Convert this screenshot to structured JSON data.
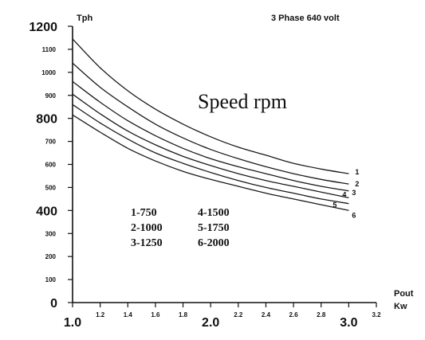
{
  "chart_data": {
    "type": "line",
    "title": "Speed rpm",
    "subtitle": "3 Phase 640 volt",
    "ylabel": "Tph",
    "xlabel_lines": [
      "Pout",
      "Kw"
    ],
    "xlim": [
      1.0,
      3.2
    ],
    "ylim": [
      0,
      1200
    ],
    "grid": false,
    "x_ticks": [
      {
        "value": 1.0,
        "label": "1.0",
        "major": true
      },
      {
        "value": 1.2,
        "label": "1.2",
        "major": false
      },
      {
        "value": 1.4,
        "label": "1.4",
        "major": false
      },
      {
        "value": 1.6,
        "label": "1.6",
        "major": false
      },
      {
        "value": 1.8,
        "label": "1.8",
        "major": false
      },
      {
        "value": 2.0,
        "label": "2.0",
        "major": true
      },
      {
        "value": 2.2,
        "label": "2.2",
        "major": false
      },
      {
        "value": 2.4,
        "label": "2.4",
        "major": false
      },
      {
        "value": 2.6,
        "label": "2.6",
        "major": false
      },
      {
        "value": 2.8,
        "label": "2.8",
        "major": false
      },
      {
        "value": 3.0,
        "label": "3.0",
        "major": true
      },
      {
        "value": 3.2,
        "label": "3.2",
        "major": false
      }
    ],
    "y_ticks": [
      {
        "value": 0,
        "label": "0",
        "major": true
      },
      {
        "value": 100,
        "label": "100",
        "major": false
      },
      {
        "value": 200,
        "label": "200",
        "major": false
      },
      {
        "value": 300,
        "label": "300",
        "major": false
      },
      {
        "value": 400,
        "label": "400",
        "major": true
      },
      {
        "value": 500,
        "label": "500",
        "major": false
      },
      {
        "value": 600,
        "label": "600",
        "major": false
      },
      {
        "value": 700,
        "label": "700",
        "major": false
      },
      {
        "value": 800,
        "label": "800",
        "major": true
      },
      {
        "value": 900,
        "label": "900",
        "major": false
      },
      {
        "value": 1000,
        "label": "1000",
        "major": false
      },
      {
        "value": 1100,
        "label": "1100",
        "major": false
      },
      {
        "value": 1200,
        "label": "1200",
        "major": true
      }
    ],
    "x": [
      1.0,
      1.2,
      1.4,
      1.6,
      1.8,
      2.0,
      2.2,
      2.4,
      2.6,
      2.8,
      3.0
    ],
    "series": [
      {
        "name": "1",
        "values": [
          1145,
          1020,
          920,
          840,
          775,
          720,
          675,
          640,
          605,
          580,
          560
        ]
      },
      {
        "name": "2",
        "values": [
          1040,
          935,
          850,
          775,
          715,
          665,
          625,
          590,
          560,
          535,
          515
        ]
      },
      {
        "name": "3",
        "values": [
          960,
          870,
          790,
          725,
          670,
          625,
          590,
          560,
          530,
          505,
          485
        ]
      },
      {
        "name": "4",
        "values": [
          905,
          820,
          745,
          685,
          635,
          595,
          560,
          530,
          505,
          480,
          455
        ]
      },
      {
        "name": "5",
        "values": [
          860,
          780,
          710,
          650,
          605,
          565,
          530,
          500,
          475,
          450,
          430
        ]
      },
      {
        "name": "6",
        "values": [
          815,
          740,
          670,
          615,
          570,
          535,
          505,
          475,
          450,
          425,
          400
        ]
      }
    ],
    "legend": [
      [
        "1-750",
        "4-1500"
      ],
      [
        "2-1000",
        "5-1750"
      ],
      [
        "3-1250",
        "6-2000"
      ]
    ]
  }
}
